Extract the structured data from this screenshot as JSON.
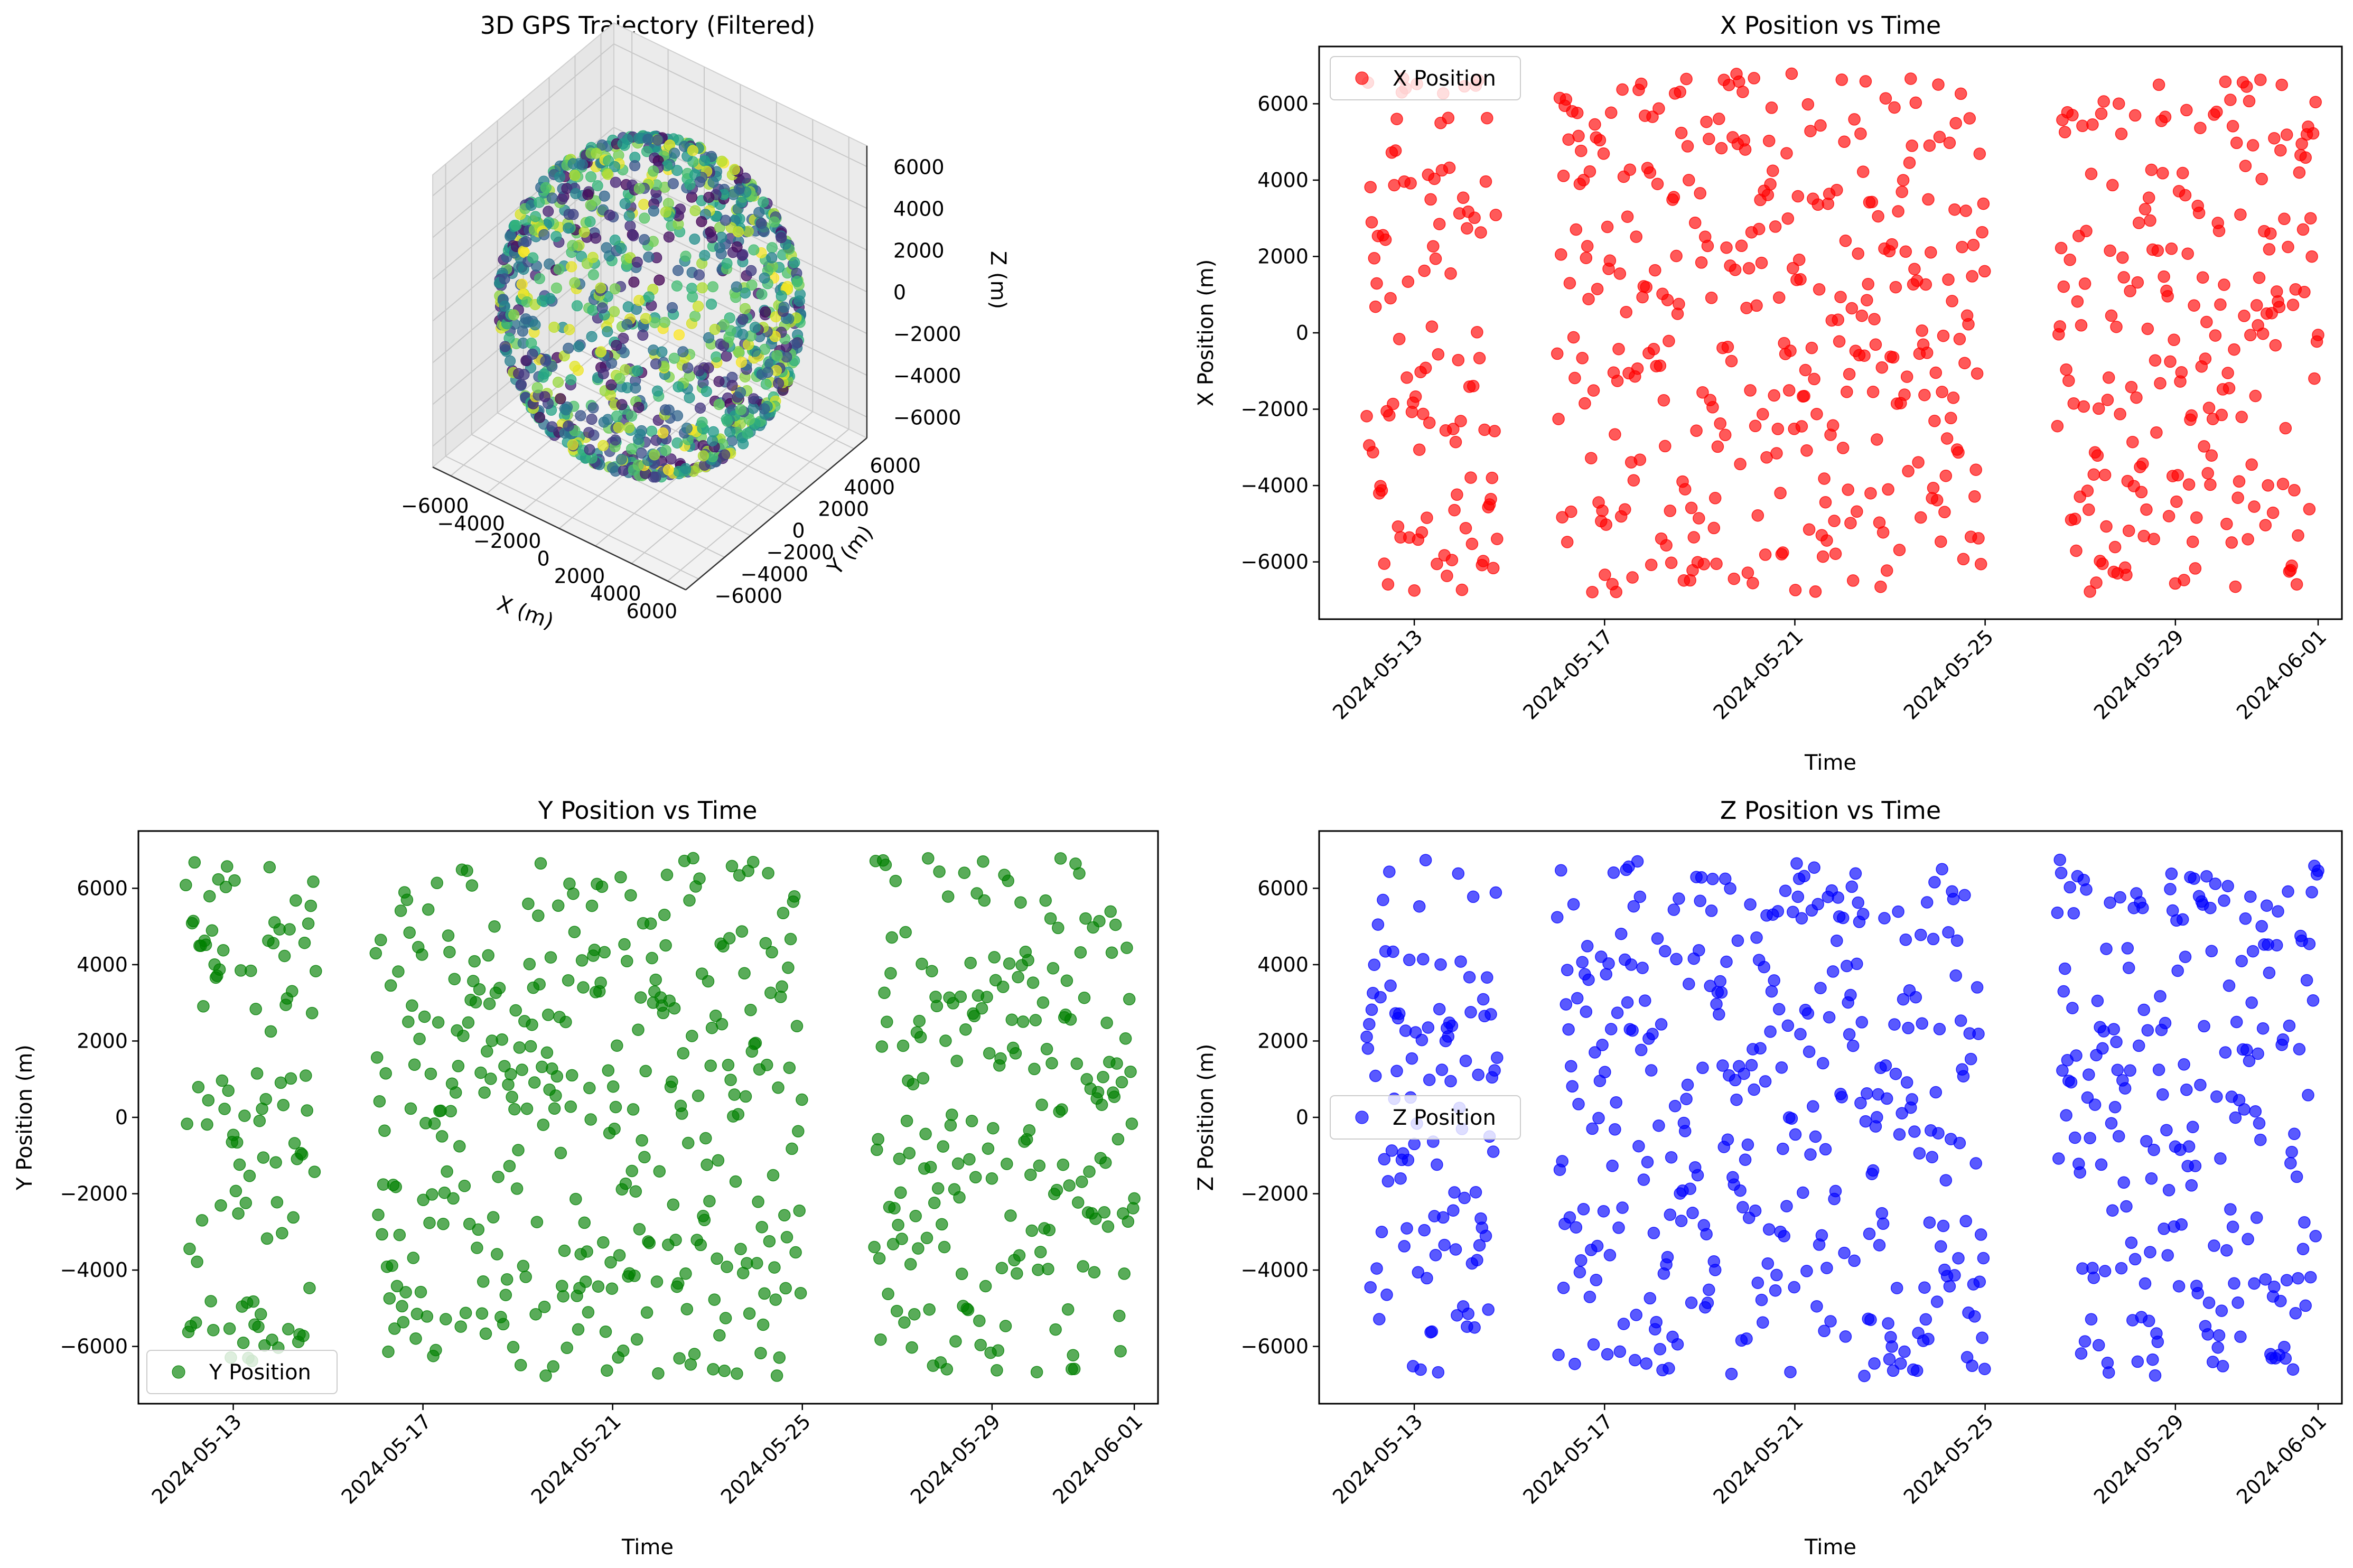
{
  "colors": {
    "x_series": "#ff0000",
    "y_series": "#008000",
    "z_series": "#0000ff",
    "colormap": "viridis"
  },
  "chart_data": [
    {
      "type": "scatter3d",
      "title": "3D GPS Trajectory (Filtered)",
      "xlabel": "X (m)",
      "ylabel": "Y (m)",
      "zlabel": "Z (m)",
      "xlim": [
        -7000,
        7000
      ],
      "ylim": [
        -7000,
        7000
      ],
      "zlim": [
        -7000,
        7000
      ],
      "xticks": [
        -6000,
        -4000,
        -2000,
        0,
        2000,
        4000,
        6000
      ],
      "xtick_labels": [
        "−6000",
        "−4000",
        "−2000",
        "0",
        "2000",
        "4000",
        "6000"
      ],
      "yticks": [
        -6000,
        -4000,
        -2000,
        0,
        2000,
        4000,
        6000
      ],
      "ytick_labels": [
        "−6000",
        "−4000",
        "−2000",
        "0",
        "2000",
        "4000",
        "6000"
      ],
      "zticks": [
        -6000,
        -4000,
        -2000,
        0,
        2000,
        4000,
        6000
      ],
      "ztick_labels": [
        "−6000",
        "−4000",
        "−2000",
        "0",
        "2000",
        "4000",
        "6000"
      ],
      "radius": 6800,
      "grid": true,
      "note_points": "points lie on a sphere of radius ~6800 m, colored by time (viridis)"
    },
    {
      "type": "scatter",
      "title": "X Position vs Time",
      "xlabel": "Time",
      "ylabel": "X Position (m)",
      "series_name": "X Position",
      "legend": "upper left",
      "xlim": [
        "2024-05-11T00:00",
        "2024-06-01T12:00"
      ],
      "ylim": [
        -7500,
        7500
      ],
      "xticks": [
        "2024-05-13",
        "2024-05-17",
        "2024-05-21",
        "2024-05-25",
        "2024-05-29",
        "2024-06-01"
      ],
      "yticks": [
        -6000,
        -4000,
        -2000,
        0,
        2000,
        4000,
        6000
      ],
      "ytick_labels": [
        "−6000",
        "−4000",
        "−2000",
        "0",
        "2000",
        "4000",
        "6000"
      ],
      "gaps": [
        [
          "2024-05-14T18:00",
          "2024-05-16T00:00"
        ],
        [
          "2024-05-25T00:00",
          "2024-05-26T12:00"
        ]
      ],
      "time_range": [
        "2024-05-12T00:00",
        "2024-06-01T00:00"
      ],
      "value_range": [
        -6800,
        6800
      ]
    },
    {
      "type": "scatter",
      "title": "Y Position vs Time",
      "xlabel": "Time",
      "ylabel": "Y Position (m)",
      "series_name": "Y Position",
      "legend": "lower left",
      "xlim": [
        "2024-05-11T00:00",
        "2024-06-01T12:00"
      ],
      "ylim": [
        -7500,
        7500
      ],
      "xticks": [
        "2024-05-13",
        "2024-05-17",
        "2024-05-21",
        "2024-05-25",
        "2024-05-29",
        "2024-06-01"
      ],
      "yticks": [
        -6000,
        -4000,
        -2000,
        0,
        2000,
        4000,
        6000
      ],
      "ytick_labels": [
        "−6000",
        "−4000",
        "−2000",
        "0",
        "2000",
        "4000",
        "6000"
      ],
      "gaps": [
        [
          "2024-05-14T18:00",
          "2024-05-16T00:00"
        ],
        [
          "2024-05-25T00:00",
          "2024-05-26T12:00"
        ]
      ],
      "time_range": [
        "2024-05-12T00:00",
        "2024-06-01T00:00"
      ],
      "value_range": [
        -6800,
        6800
      ]
    },
    {
      "type": "scatter",
      "title": "Z Position vs Time",
      "xlabel": "Time",
      "ylabel": "Z Position (m)",
      "series_name": "Z Position",
      "legend": "center left",
      "xlim": [
        "2024-05-11T00:00",
        "2024-06-01T12:00"
      ],
      "ylim": [
        -7500,
        7500
      ],
      "xticks": [
        "2024-05-13",
        "2024-05-17",
        "2024-05-21",
        "2024-05-25",
        "2024-05-29",
        "2024-06-01"
      ],
      "yticks": [
        -6000,
        -4000,
        -2000,
        0,
        2000,
        4000,
        6000
      ],
      "ytick_labels": [
        "−6000",
        "−4000",
        "−2000",
        "0",
        "2000",
        "4000",
        "6000"
      ],
      "gaps": [
        [
          "2024-05-14T18:00",
          "2024-05-16T00:00"
        ],
        [
          "2024-05-25T00:00",
          "2024-05-26T12:00"
        ]
      ],
      "time_range": [
        "2024-05-12T00:00",
        "2024-06-01T00:00"
      ],
      "value_range": [
        -6800,
        6800
      ]
    }
  ]
}
